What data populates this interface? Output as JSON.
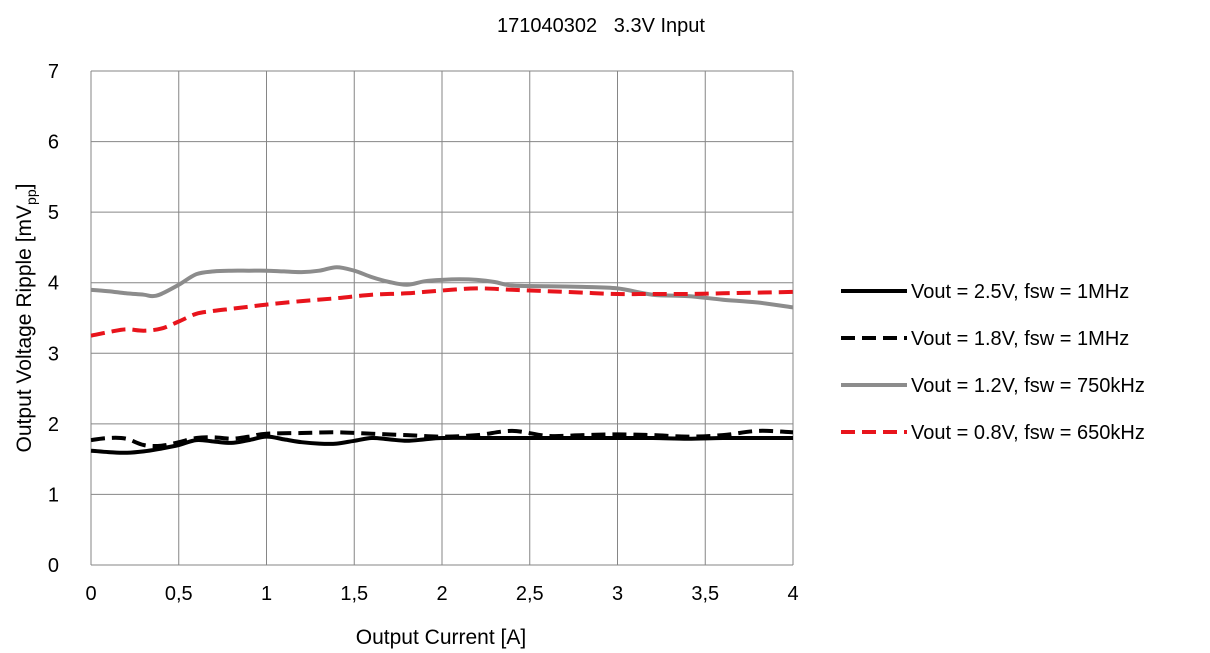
{
  "chart_data": {
    "type": "line",
    "title": "171040302   3.3V Input",
    "xlabel": "Output Current [A]",
    "ylabel": {
      "prefix": "Output Voltage Ripple [mV",
      "subscript": "pp",
      "suffix": "]"
    },
    "xlim": [
      0,
      4
    ],
    "ylim": [
      0,
      7
    ],
    "x_ticks": [
      0,
      0.5,
      1,
      1.5,
      2,
      2.5,
      3,
      3.5,
      4
    ],
    "x_tick_labels": [
      "0",
      "0,5",
      "1",
      "1,5",
      "2",
      "2,5",
      "3",
      "3,5",
      "4"
    ],
    "y_ticks": [
      0,
      1,
      2,
      3,
      4,
      5,
      6,
      7
    ],
    "y_tick_labels": [
      "0",
      "1",
      "2",
      "3",
      "4",
      "5",
      "6",
      "7"
    ],
    "grid": true,
    "legend_position": "right",
    "series": [
      {
        "name": "Vout = 2.5V, fsw = 1MHz",
        "color": "#000000",
        "dash": "solid",
        "x": [
          0,
          0.1,
          0.2,
          0.3,
          0.4,
          0.5,
          0.6,
          0.7,
          0.8,
          0.9,
          1.0,
          1.1,
          1.2,
          1.3,
          1.4,
          1.5,
          1.6,
          1.7,
          1.8,
          1.9,
          2.0,
          2.2,
          2.4,
          2.6,
          2.8,
          3.0,
          3.2,
          3.4,
          3.6,
          3.8,
          4.0
        ],
        "y": [
          1.62,
          1.6,
          1.59,
          1.61,
          1.65,
          1.7,
          1.77,
          1.75,
          1.73,
          1.77,
          1.82,
          1.78,
          1.74,
          1.72,
          1.72,
          1.76,
          1.8,
          1.78,
          1.76,
          1.78,
          1.8,
          1.8,
          1.8,
          1.8,
          1.8,
          1.8,
          1.8,
          1.79,
          1.8,
          1.8,
          1.8
        ]
      },
      {
        "name": "Vout = 1.8V, fsw = 1MHz",
        "color": "#000000",
        "dash": "dashed",
        "x": [
          0,
          0.1,
          0.2,
          0.3,
          0.4,
          0.5,
          0.6,
          0.7,
          0.8,
          0.9,
          1.0,
          1.2,
          1.4,
          1.6,
          1.8,
          2.0,
          2.2,
          2.4,
          2.6,
          2.8,
          3.0,
          3.2,
          3.4,
          3.6,
          3.8,
          4.0
        ],
        "y": [
          1.77,
          1.8,
          1.79,
          1.7,
          1.69,
          1.74,
          1.8,
          1.81,
          1.79,
          1.82,
          1.86,
          1.87,
          1.88,
          1.86,
          1.84,
          1.82,
          1.84,
          1.9,
          1.83,
          1.84,
          1.85,
          1.84,
          1.82,
          1.84,
          1.9,
          1.88
        ]
      },
      {
        "name": "Vout = 1.2V, fsw = 750kHz",
        "color": "#8c8c8c",
        "dash": "solid",
        "x": [
          0,
          0.1,
          0.2,
          0.3,
          0.35,
          0.4,
          0.5,
          0.6,
          0.7,
          0.8,
          0.9,
          1.0,
          1.1,
          1.2,
          1.3,
          1.4,
          1.5,
          1.6,
          1.7,
          1.8,
          1.9,
          2.0,
          2.1,
          2.2,
          2.3,
          2.4,
          2.6,
          2.8,
          3.0,
          3.2,
          3.4,
          3.6,
          3.8,
          4.0
        ],
        "y": [
          3.9,
          3.88,
          3.85,
          3.83,
          3.81,
          3.84,
          3.97,
          4.12,
          4.16,
          4.17,
          4.17,
          4.17,
          4.16,
          4.15,
          4.17,
          4.22,
          4.17,
          4.08,
          4.01,
          3.97,
          4.02,
          4.04,
          4.05,
          4.04,
          4.01,
          3.96,
          3.95,
          3.94,
          3.92,
          3.83,
          3.81,
          3.76,
          3.72,
          3.65
        ]
      },
      {
        "name": "Vout = 0.8V, fsw = 650kHz",
        "color": "#e8141c",
        "dash": "dashed",
        "x": [
          0,
          0.1,
          0.2,
          0.3,
          0.4,
          0.5,
          0.6,
          0.7,
          0.8,
          0.9,
          1.0,
          1.2,
          1.4,
          1.6,
          1.8,
          2.0,
          2.2,
          2.4,
          2.6,
          2.8,
          3.0,
          3.2,
          3.4,
          3.6,
          3.8,
          4.0
        ],
        "y": [
          3.25,
          3.3,
          3.34,
          3.32,
          3.35,
          3.45,
          3.56,
          3.6,
          3.63,
          3.66,
          3.69,
          3.74,
          3.78,
          3.83,
          3.85,
          3.89,
          3.92,
          3.9,
          3.88,
          3.86,
          3.84,
          3.84,
          3.84,
          3.85,
          3.86,
          3.87
        ]
      }
    ]
  }
}
